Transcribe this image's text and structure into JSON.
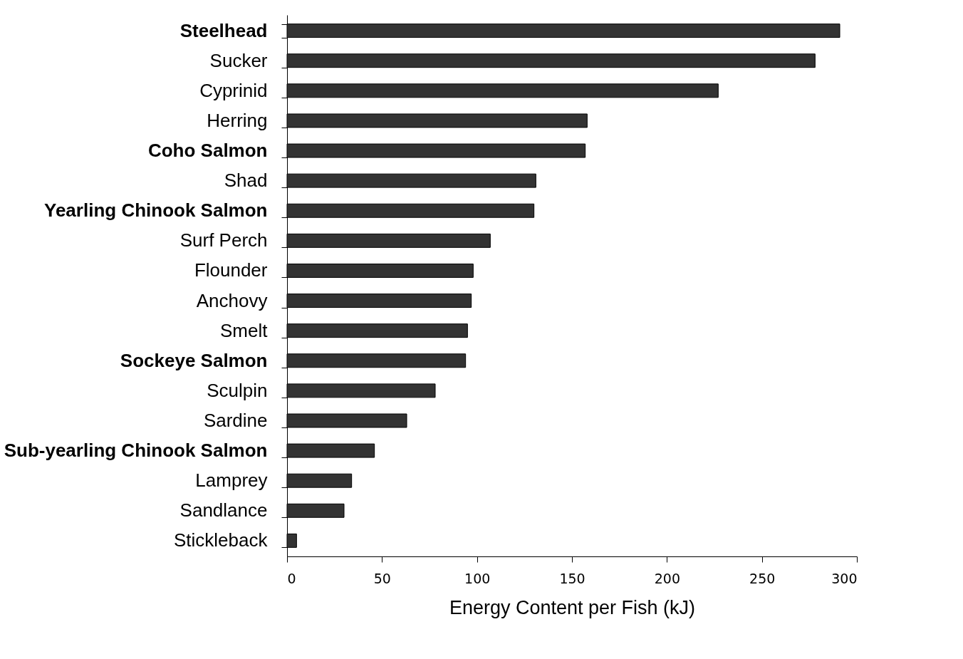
{
  "chart_data": {
    "type": "bar",
    "orientation": "horizontal",
    "xlabel": "Energy Content per Fish (kJ)",
    "categories": [
      "Steelhead",
      "Sucker",
      "Cyprinid",
      "Herring",
      "Coho Salmon",
      "Shad",
      "Yearling Chinook Salmon",
      "Surf Perch",
      "Flounder",
      "Anchovy",
      "Smelt",
      "Sockeye Salmon",
      "Sculpin",
      "Sardine",
      "Sub-yearling Chinook Salmon",
      "Lamprey",
      "Sandlance",
      "Stickleback"
    ],
    "values": [
      291,
      278,
      227,
      158,
      157,
      131,
      130,
      107,
      98,
      97,
      95,
      94,
      78,
      63,
      46,
      34,
      30,
      5
    ],
    "color": "#333333",
    "xlim": [
      0,
      300
    ],
    "xticks": [
      0,
      50,
      100,
      150,
      200,
      250,
      300
    ],
    "grid": false
  }
}
